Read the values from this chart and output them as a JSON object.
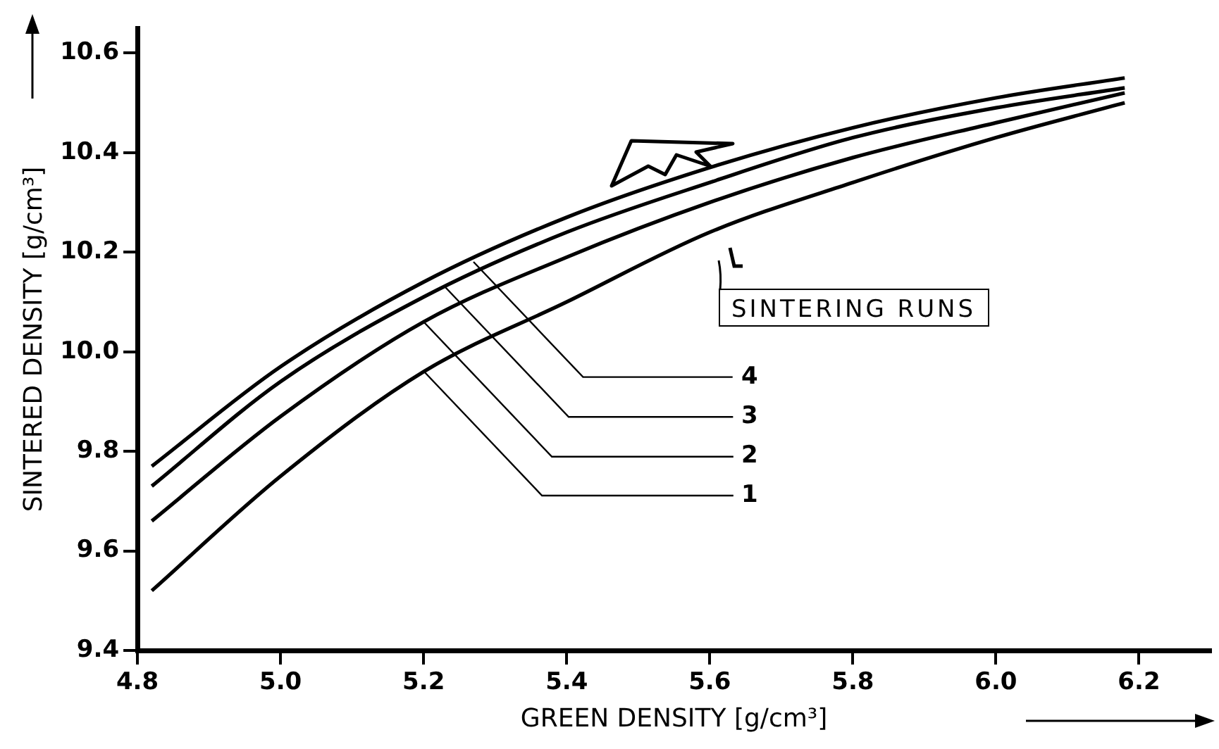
{
  "chart_data": {
    "type": "line",
    "xlabel": "GREEN DENSITY [g/cm³]",
    "ylabel": "SINTERED DENSITY [g/cm³]",
    "xlim": [
      4.8,
      6.3
    ],
    "ylim": [
      9.4,
      10.65
    ],
    "xticks": [
      {
        "value": 4.8,
        "label": "4.8"
      },
      {
        "value": 5.0,
        "label": "5.0"
      },
      {
        "value": 5.2,
        "label": "5.2"
      },
      {
        "value": 5.4,
        "label": "5.4"
      },
      {
        "value": 5.6,
        "label": "5.6"
      },
      {
        "value": 5.8,
        "label": "5.8"
      },
      {
        "value": 6.0,
        "label": "6.0"
      },
      {
        "value": 6.2,
        "label": "6.2"
      }
    ],
    "yticks": [
      {
        "value": 9.4,
        "label": "9.4"
      },
      {
        "value": 9.6,
        "label": "9.6"
      },
      {
        "value": 9.8,
        "label": "9.8"
      },
      {
        "value": 10.0,
        "label": "10.0"
      },
      {
        "value": 10.2,
        "label": "10.2"
      },
      {
        "value": 10.4,
        "label": "10.4"
      },
      {
        "value": 10.6,
        "label": "10.6"
      }
    ],
    "grid": false,
    "legend": false,
    "marker": "none",
    "line_style": "solid",
    "x": [
      4.82,
      5.0,
      5.2,
      5.4,
      5.6,
      5.8,
      6.0,
      6.18
    ],
    "series": [
      {
        "color": "#000000",
        "values": [
          9.52,
          9.75,
          9.96,
          10.1,
          10.24,
          10.34,
          10.43,
          10.5
        ]
      },
      {
        "color": "#000000",
        "values": [
          9.66,
          9.87,
          10.06,
          10.19,
          10.3,
          10.39,
          10.46,
          10.52
        ]
      },
      {
        "color": "#000000",
        "values": [
          9.73,
          9.94,
          10.11,
          10.24,
          10.34,
          10.43,
          10.49,
          10.53
        ]
      },
      {
        "color": "#000000",
        "values": [
          9.77,
          9.97,
          10.14,
          10.27,
          10.37,
          10.45,
          10.51,
          10.55
        ]
      }
    ],
    "annotations": [
      "SINTERING RUNS",
      {
        "text": "1",
        "x": 5.2,
        "y": 9.96
      },
      {
        "text": "2",
        "x": 5.2,
        "y": 10.06
      },
      {
        "text": "3",
        "x": 5.23,
        "y": 10.13
      },
      {
        "text": "4",
        "x": 5.27,
        "y": 10.18
      }
    ]
  }
}
